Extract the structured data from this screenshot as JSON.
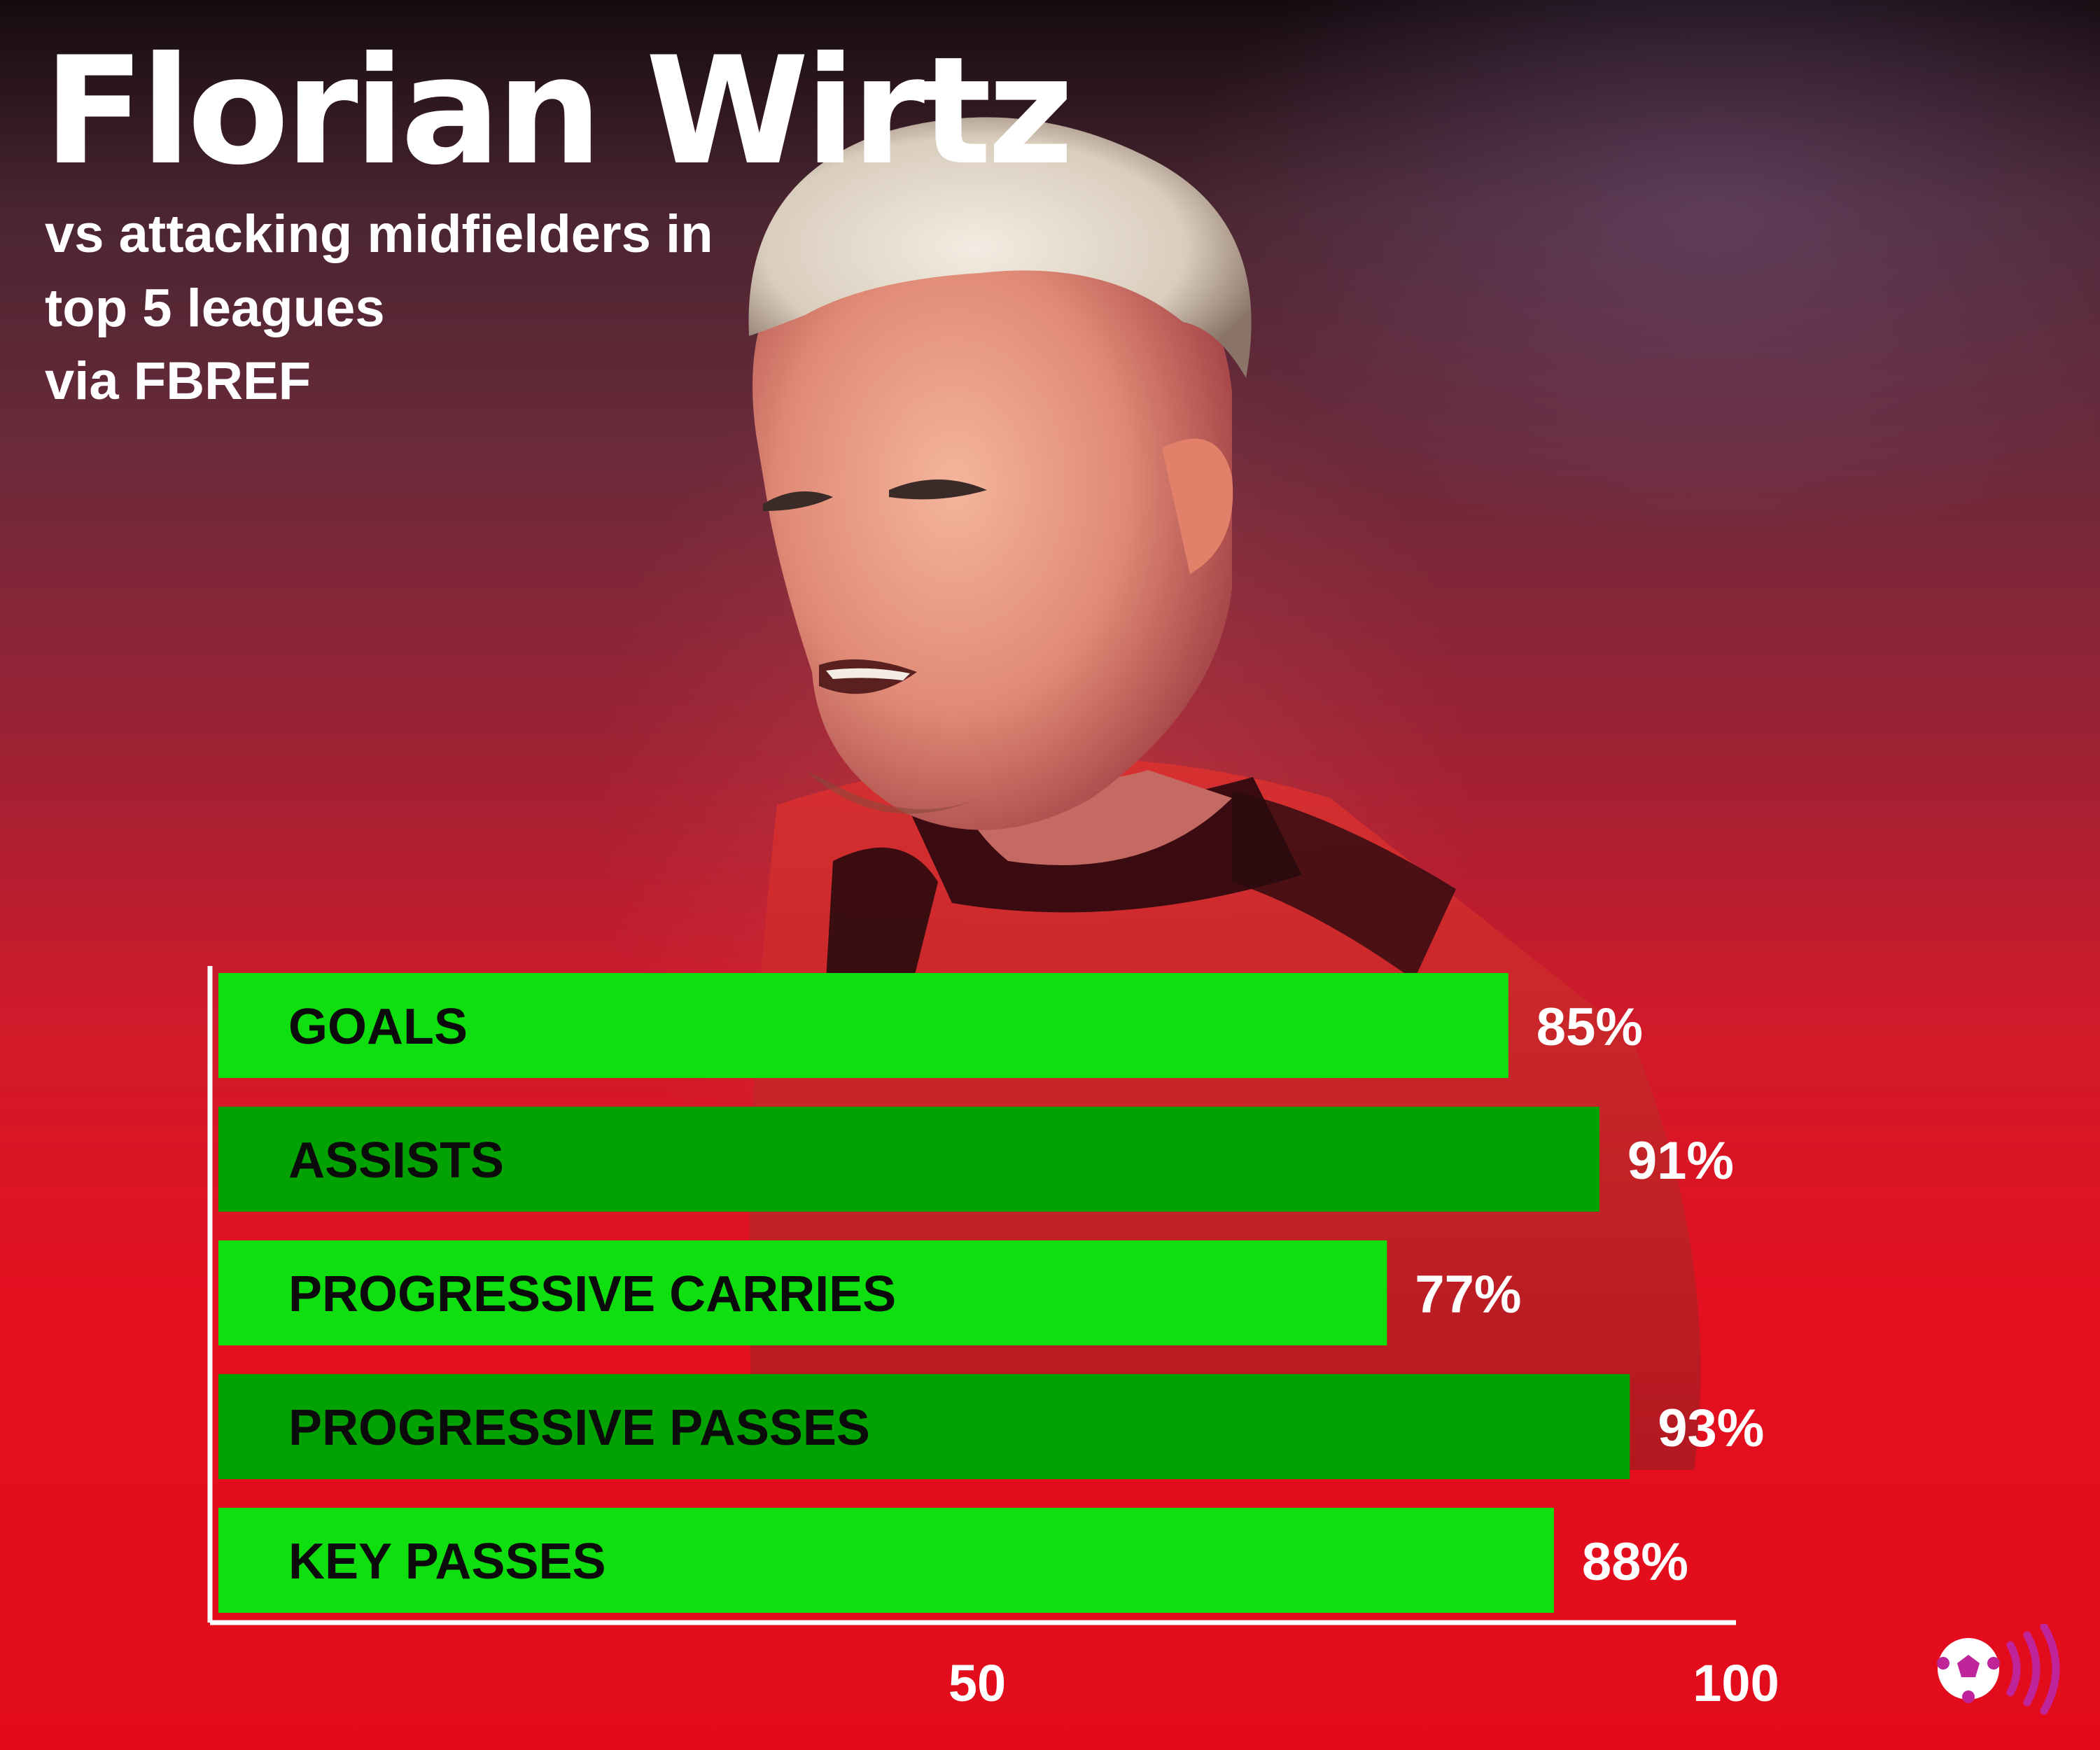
{
  "header": {
    "title": "Florian Wirtz",
    "subtitle_line1": "vs attacking midfielders in",
    "subtitle_line2": "top 5 leagues",
    "subtitle_line3": "via FBREF"
  },
  "colors": {
    "bar_light": "#0fdf0f",
    "bar_dark": "#03a203",
    "axis": "#ffffff",
    "background": "#e01320",
    "logo": "#c0249a"
  },
  "icons": [
    "player-photo",
    "football-logo-icon"
  ],
  "chart_data": {
    "type": "bar",
    "orientation": "horizontal",
    "categories": [
      "GOALS",
      "ASSISTS",
      "PROGRESSIVE CARRIES",
      "PROGRESSIVE PASSES",
      "KEY PASSES"
    ],
    "values": [
      85,
      91,
      77,
      93,
      88
    ],
    "value_labels": [
      "85%",
      "91%",
      "77%",
      "93%",
      "88%"
    ],
    "xticks": [
      50,
      100
    ],
    "xtick_labels": [
      "50",
      "100"
    ],
    "xlim": [
      0,
      100
    ],
    "grid": false,
    "legend": "none",
    "title": "",
    "xlabel": "",
    "ylabel": ""
  }
}
